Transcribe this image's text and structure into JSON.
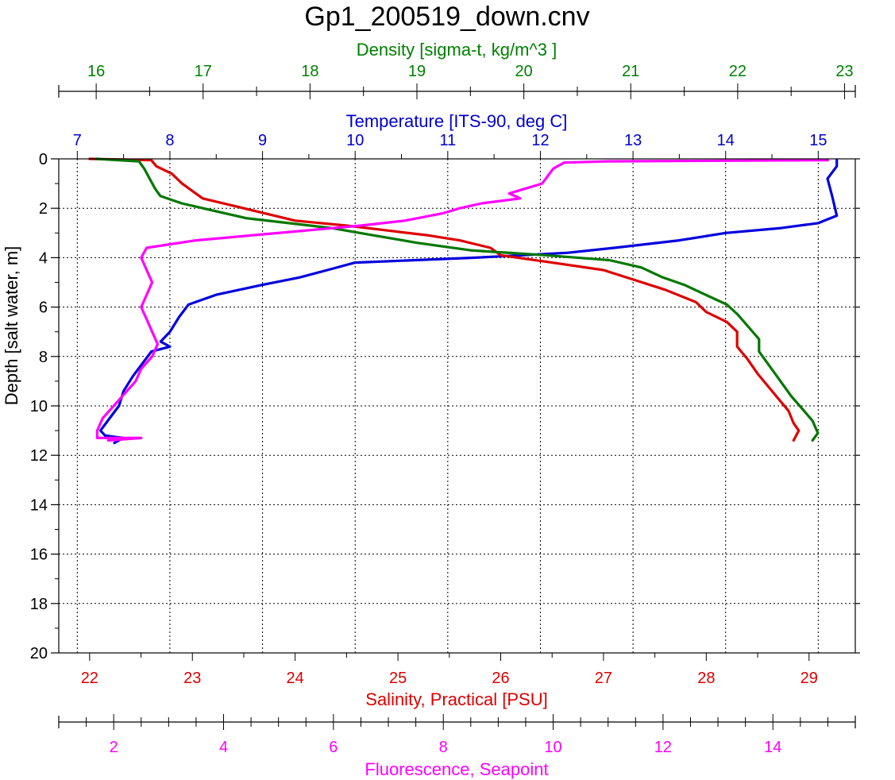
{
  "chart_data": {
    "type": "line",
    "title": "Gp1_200519_down.cnv",
    "y_axis": {
      "label": "Depth [salt water, m]",
      "range": [
        0,
        20
      ],
      "inverted": true,
      "ticks": [
        "0",
        "2",
        "4",
        "6",
        "8",
        "10",
        "12",
        "14",
        "16",
        "18",
        "20"
      ]
    },
    "x_axes": {
      "density": {
        "label": "Density [sigma-t, kg/m^3 ]",
        "position": "top-outer",
        "range": [
          15.65,
          23.1
        ],
        "color": "#008000",
        "ticks": [
          "16",
          "17",
          "18",
          "19",
          "20",
          "21",
          "22",
          "23"
        ]
      },
      "temperature": {
        "label": "Temperature [ITS-90, deg C]",
        "position": "top-inner",
        "range": [
          6.8,
          15.4
        ],
        "color": "#0000cc",
        "ticks": [
          "7",
          "8",
          "9",
          "10",
          "11",
          "12",
          "13",
          "14",
          "15"
        ]
      },
      "salinity": {
        "label": "Salinity, Practical [PSU]",
        "position": "bottom-inner",
        "range": [
          21.7,
          29.45
        ],
        "color": "#dd0000",
        "ticks": [
          "22",
          "23",
          "24",
          "25",
          "26",
          "27",
          "28",
          "29"
        ]
      },
      "fluorescence": {
        "label": "Fluorescence, Seapoint",
        "position": "bottom-outer",
        "range": [
          1.0,
          15.5
        ],
        "color": "#ff00ff",
        "ticks": [
          "2",
          "4",
          "6",
          "8",
          "10",
          "12",
          "14"
        ]
      }
    },
    "grid": true,
    "series": [
      {
        "axis": "temperature",
        "color": "#0000dd",
        "points": [
          [
            15.2,
            0.05
          ],
          [
            15.2,
            0.3
          ],
          [
            15.1,
            0.8
          ],
          [
            15.15,
            1.5
          ],
          [
            15.2,
            2.3
          ],
          [
            15.0,
            2.6
          ],
          [
            14.6,
            2.8
          ],
          [
            14.0,
            3.0
          ],
          [
            13.5,
            3.3
          ],
          [
            12.8,
            3.6
          ],
          [
            12.3,
            3.8
          ],
          [
            11.3,
            4.0
          ],
          [
            10.0,
            4.2
          ],
          [
            9.7,
            4.5
          ],
          [
            9.4,
            4.8
          ],
          [
            9.0,
            5.1
          ],
          [
            8.5,
            5.5
          ],
          [
            8.2,
            5.9
          ],
          [
            8.1,
            6.4
          ],
          [
            8.0,
            7.0
          ],
          [
            7.9,
            7.4
          ],
          [
            8.0,
            7.6
          ],
          [
            7.8,
            7.8
          ],
          [
            7.7,
            8.3
          ],
          [
            7.6,
            8.8
          ],
          [
            7.5,
            9.4
          ],
          [
            7.45,
            10.0
          ],
          [
            7.35,
            10.5
          ],
          [
            7.25,
            11.0
          ],
          [
            7.3,
            11.2
          ],
          [
            7.5,
            11.3
          ],
          [
            7.4,
            11.5
          ]
        ]
      },
      {
        "axis": "salinity",
        "color": "#dd0000",
        "points": [
          [
            22.0,
            0.0
          ],
          [
            22.6,
            0.05
          ],
          [
            22.65,
            0.3
          ],
          [
            22.8,
            0.6
          ],
          [
            22.9,
            1.0
          ],
          [
            23.0,
            1.3
          ],
          [
            23.1,
            1.6
          ],
          [
            23.4,
            1.9
          ],
          [
            23.7,
            2.2
          ],
          [
            24.0,
            2.5
          ],
          [
            24.5,
            2.7
          ],
          [
            24.9,
            2.9
          ],
          [
            25.3,
            3.1
          ],
          [
            25.6,
            3.3
          ],
          [
            25.9,
            3.6
          ],
          [
            26.0,
            3.9
          ],
          [
            26.5,
            4.2
          ],
          [
            27.0,
            4.5
          ],
          [
            27.3,
            4.9
          ],
          [
            27.6,
            5.3
          ],
          [
            27.9,
            5.8
          ],
          [
            28.0,
            6.2
          ],
          [
            28.2,
            6.6
          ],
          [
            28.3,
            7.0
          ],
          [
            28.3,
            7.6
          ],
          [
            28.4,
            8.1
          ],
          [
            28.5,
            8.7
          ],
          [
            28.6,
            9.2
          ],
          [
            28.7,
            9.7
          ],
          [
            28.8,
            10.2
          ],
          [
            28.85,
            10.7
          ],
          [
            28.9,
            11.0
          ],
          [
            28.85,
            11.4
          ]
        ]
      },
      {
        "axis": "density",
        "color": "#007700",
        "points": [
          [
            16.0,
            0.0
          ],
          [
            16.4,
            0.1
          ],
          [
            16.45,
            0.4
          ],
          [
            16.5,
            0.8
          ],
          [
            16.55,
            1.2
          ],
          [
            16.6,
            1.5
          ],
          [
            16.8,
            1.8
          ],
          [
            17.1,
            2.1
          ],
          [
            17.4,
            2.4
          ],
          [
            17.8,
            2.6
          ],
          [
            18.2,
            2.8
          ],
          [
            18.6,
            3.1
          ],
          [
            19.0,
            3.4
          ],
          [
            19.5,
            3.7
          ],
          [
            20.2,
            3.9
          ],
          [
            20.8,
            4.1
          ],
          [
            21.1,
            4.4
          ],
          [
            21.3,
            4.8
          ],
          [
            21.5,
            5.1
          ],
          [
            21.7,
            5.5
          ],
          [
            21.9,
            5.9
          ],
          [
            22.0,
            6.3
          ],
          [
            22.1,
            6.8
          ],
          [
            22.2,
            7.3
          ],
          [
            22.2,
            7.8
          ],
          [
            22.3,
            8.4
          ],
          [
            22.4,
            9.0
          ],
          [
            22.5,
            9.6
          ],
          [
            22.6,
            10.1
          ],
          [
            22.7,
            10.6
          ],
          [
            22.75,
            11.1
          ],
          [
            22.7,
            11.4
          ]
        ]
      },
      {
        "axis": "fluorescence",
        "color": "#ff00ff",
        "points": [
          [
            15.0,
            0.05
          ],
          [
            11.0,
            0.1
          ],
          [
            10.2,
            0.15
          ],
          [
            10.0,
            0.4
          ],
          [
            9.9,
            0.7
          ],
          [
            9.8,
            1.0
          ],
          [
            9.5,
            1.2
          ],
          [
            9.2,
            1.4
          ],
          [
            9.4,
            1.6
          ],
          [
            8.7,
            1.8
          ],
          [
            8.3,
            2.0
          ],
          [
            8.0,
            2.2
          ],
          [
            7.3,
            2.5
          ],
          [
            6.5,
            2.7
          ],
          [
            5.5,
            2.9
          ],
          [
            4.5,
            3.1
          ],
          [
            3.5,
            3.3
          ],
          [
            2.6,
            3.6
          ],
          [
            2.5,
            4.0
          ],
          [
            2.6,
            4.5
          ],
          [
            2.7,
            5.0
          ],
          [
            2.6,
            5.5
          ],
          [
            2.5,
            6.0
          ],
          [
            2.6,
            6.5
          ],
          [
            2.7,
            7.0
          ],
          [
            2.8,
            7.5
          ],
          [
            2.7,
            8.0
          ],
          [
            2.5,
            8.5
          ],
          [
            2.4,
            9.0
          ],
          [
            2.2,
            9.5
          ],
          [
            2.0,
            10.0
          ],
          [
            1.8,
            10.5
          ],
          [
            1.7,
            11.0
          ],
          [
            1.7,
            11.3
          ],
          [
            2.5,
            11.3
          ],
          [
            1.9,
            11.4
          ]
        ]
      }
    ]
  }
}
